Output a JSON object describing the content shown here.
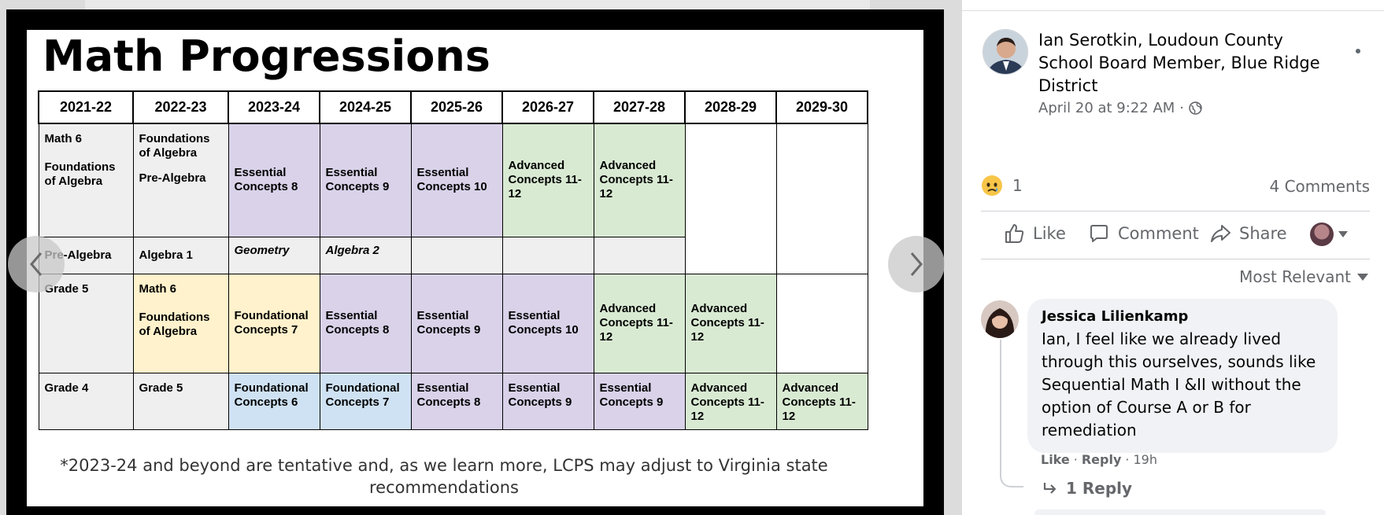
{
  "slide": {
    "title": "Math Progressions",
    "headers": [
      "2021-22",
      "2022-23",
      "2023-24",
      "2024-25",
      "2025-26",
      "2026-27",
      "2027-28",
      "2028-29",
      "2029-30"
    ],
    "row1": {
      "c1_top": "Math 6",
      "c1_bottom": "Foundations of Algebra",
      "c2_top": "Foundations of Algebra",
      "c2_bottom": "Pre-Algebra",
      "c3": "Essential Concepts 8",
      "c4": "Essential Concepts 9",
      "c5": "Essential Concepts 10",
      "c6": "Advanced Concepts 11-12",
      "c7": "Advanced Concepts 11-12"
    },
    "row2": {
      "c1": "Pre-Algebra",
      "c2": "Algebra 1",
      "c3": "Geometry",
      "c4": "Algebra 2"
    },
    "row3": {
      "c1": "Grade 5",
      "c2_top": "Math 6",
      "c2_bottom": "Foundations of Algebra",
      "c3": "Foundational Concepts 7",
      "c4": "Essential Concepts 8",
      "c5": "Essential Concepts 9",
      "c6": "Essential Concepts 10",
      "c7": "Advanced Concepts 11-12",
      "c8": "Advanced Concepts 11-12"
    },
    "row4": {
      "c1": "Grade 4",
      "c2": "Grade 5",
      "c3": "Foundational Concepts 6",
      "c4": "Foundational Concepts 7",
      "c5": "Essential Concepts 8",
      "c6": "Essential Concepts 9",
      "c7": "Essential Concepts 9",
      "c8": "Advanced Concepts 11-12",
      "c9": "Advanced Concepts 11-12"
    },
    "footnote": "*2023-24 and beyond are tentative and, as we learn more, LCPS may adjust to Virginia state recommendations"
  },
  "post": {
    "author": "Ian Serotkin, Loudoun County School Board Member, Blue Ridge District",
    "timestamp": "April 20 at 9:22 AM",
    "separator": "·",
    "reaction_count": "1",
    "comment_count": "4 Comments",
    "actions": {
      "like": "Like",
      "comment": "Comment",
      "share": "Share"
    },
    "sort_label": "Most Relevant"
  },
  "comment": {
    "author": "Jessica Lilienkamp",
    "text": "Ian, I feel like we already lived through this ourselves, sounds like Sequential Math I &II without the option of Course A or B for remediation",
    "like": "Like",
    "reply": "Reply",
    "age": "19h",
    "dot": "·",
    "replies": "1 Reply"
  },
  "colors": {
    "gray_cell": "#efefef",
    "purple_cell": "#d9d2e9",
    "green_cell": "#d9ead3",
    "yellow_cell": "#fff2cc",
    "blue_cell": "#cfe2f3",
    "meta_text": "#65676b",
    "bubble_bg": "#f0f2f5"
  },
  "icons": [
    "chevron-left-icon",
    "chevron-right-icon",
    "globe-icon",
    "more-icon",
    "sad-reaction-icon",
    "thumbs-up-icon",
    "comment-icon",
    "share-icon",
    "caret-down-icon",
    "reply-arrow-icon"
  ]
}
